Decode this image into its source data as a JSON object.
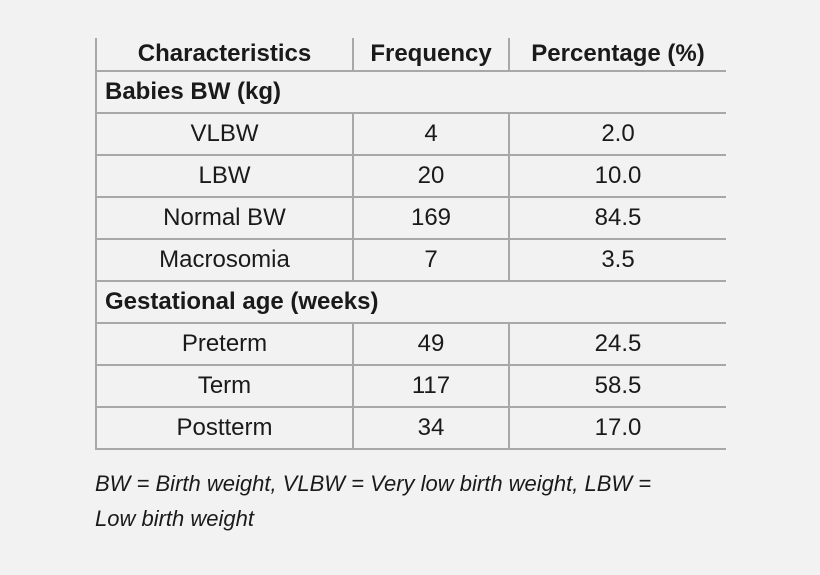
{
  "table": {
    "headers": [
      "Characteristics",
      "Frequency",
      "Percentage (%)"
    ],
    "sections": [
      {
        "title": "Babies BW (kg)",
        "rows": [
          {
            "label": "VLBW",
            "frequency": "4",
            "percentage": "2.0"
          },
          {
            "label": "LBW",
            "frequency": "20",
            "percentage": "10.0"
          },
          {
            "label": "Normal BW",
            "frequency": "169",
            "percentage": "84.5"
          },
          {
            "label": "Macrosomia",
            "frequency": "7",
            "percentage": "3.5"
          }
        ]
      },
      {
        "title": "Gestational age (weeks)",
        "rows": [
          {
            "label": "Preterm",
            "frequency": "49",
            "percentage": "24.5"
          },
          {
            "label": "Term",
            "frequency": "117",
            "percentage": "58.5"
          },
          {
            "label": "Postterm",
            "frequency": "34",
            "percentage": "17.0"
          }
        ]
      }
    ]
  },
  "footnote": {
    "line1": "BW = Birth weight, VLBW = Very low birth weight, LBW =",
    "line2": "Low birth weight"
  }
}
